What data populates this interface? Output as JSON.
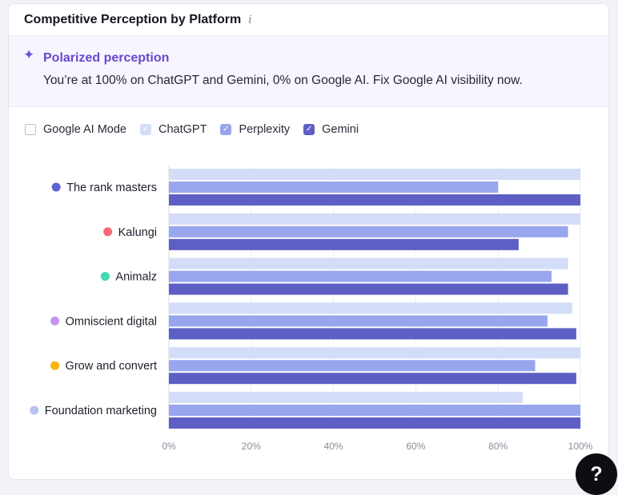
{
  "header": {
    "title": "Competitive Perception by Platform",
    "info_icon": "info-icon"
  },
  "insight": {
    "icon": "sparkle-icon",
    "title": "Polarized perception",
    "text": "You’re at 100% on ChatGPT and Gemini, 0% on Google AI. Fix Google AI visibility now."
  },
  "legend": [
    {
      "label": "Google AI Mode",
      "color": "#ffffff",
      "checked": false
    },
    {
      "label": "ChatGPT",
      "color": "#d3ddf8",
      "checked": true
    },
    {
      "label": "Perplexity",
      "color": "#98a6ee",
      "checked": true
    },
    {
      "label": "Gemini",
      "color": "#5d5fc5",
      "checked": true
    }
  ],
  "help": {
    "label": "?"
  },
  "chart_data": {
    "type": "bar",
    "orientation": "horizontal",
    "categories": [
      "The rank masters",
      "Kalungi",
      "Animalz",
      "Omniscient digital",
      "Grow and convert",
      "Foundation marketing"
    ],
    "category_colors": [
      "#5c63d4",
      "#f46b78",
      "#3ed9b0",
      "#c693f3",
      "#fab30a",
      "#b6c2f2"
    ],
    "series": [
      {
        "name": "ChatGPT",
        "color": "#d3ddf8",
        "values": [
          100,
          100,
          97,
          98,
          100,
          86
        ]
      },
      {
        "name": "Perplexity",
        "color": "#98a6ee",
        "values": [
          80,
          97,
          93,
          92,
          89,
          100
        ]
      },
      {
        "name": "Gemini",
        "color": "#5d5fc5",
        "values": [
          100,
          85,
          97,
          99,
          99,
          100
        ]
      }
    ],
    "xlim": [
      0,
      100
    ],
    "xticks": [
      "0%",
      "20%",
      "40%",
      "60%",
      "80%",
      "100%"
    ],
    "grid": true
  }
}
